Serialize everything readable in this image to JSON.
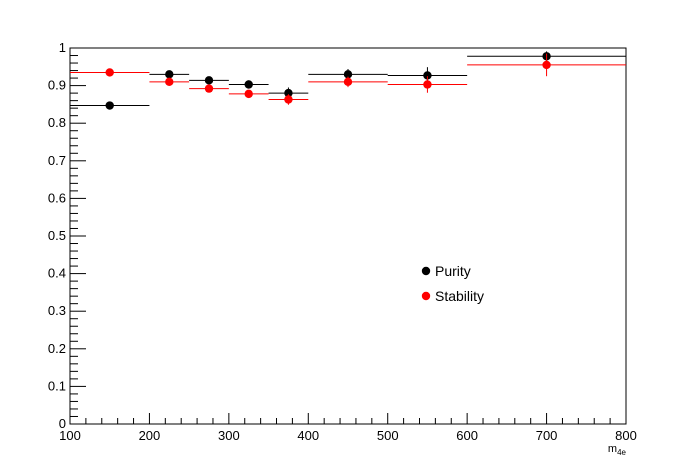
{
  "chart_data": {
    "type": "scatter",
    "title": "",
    "xlabel": "m_{4e}",
    "xlabel_main": "m",
    "xlabel_sub": "4e",
    "ylabel": "",
    "xlim": [
      100,
      800
    ],
    "ylim": [
      0,
      1
    ],
    "xticks": [
      100,
      200,
      300,
      400,
      500,
      600,
      700,
      800
    ],
    "xtick_labels": [
      "100",
      "200",
      "300",
      "400",
      "500",
      "600",
      "700",
      "800"
    ],
    "yticks": [
      0,
      0.1,
      0.2,
      0.3,
      0.4,
      0.5,
      0.6,
      0.7,
      0.8,
      0.9,
      1
    ],
    "ytick_labels": [
      "0",
      "0.1",
      "0.2",
      "0.3",
      "0.4",
      "0.5",
      "0.6",
      "0.7",
      "0.8",
      "0.9",
      "1"
    ],
    "grid": false,
    "legend_position": "center-right",
    "series": [
      {
        "name": "Purity",
        "color": "#000000",
        "points": [
          {
            "x": 150,
            "xlow": 100,
            "xhigh": 200,
            "y": 0.847,
            "yerr": 0.006
          },
          {
            "x": 225,
            "xlow": 200,
            "xhigh": 250,
            "y": 0.93,
            "yerr": 0.008
          },
          {
            "x": 275,
            "xlow": 250,
            "xhigh": 300,
            "y": 0.914,
            "yerr": 0.009
          },
          {
            "x": 325,
            "xlow": 300,
            "xhigh": 350,
            "y": 0.903,
            "yerr": 0.011
          },
          {
            "x": 375,
            "xlow": 350,
            "xhigh": 400,
            "y": 0.88,
            "yerr": 0.015
          },
          {
            "x": 450,
            "xlow": 400,
            "xhigh": 500,
            "y": 0.93,
            "yerr": 0.014
          },
          {
            "x": 550,
            "xlow": 500,
            "xhigh": 600,
            "y": 0.927,
            "yerr": 0.022
          },
          {
            "x": 700,
            "xlow": 600,
            "xhigh": 800,
            "y": 0.978,
            "yerr": 0.013
          }
        ]
      },
      {
        "name": "Stability",
        "color": "#ff0000",
        "points": [
          {
            "x": 150,
            "xlow": 100,
            "xhigh": 200,
            "y": 0.935,
            "yerr": 0.005
          },
          {
            "x": 225,
            "xlow": 200,
            "xhigh": 250,
            "y": 0.91,
            "yerr": 0.008
          },
          {
            "x": 275,
            "xlow": 250,
            "xhigh": 300,
            "y": 0.892,
            "yerr": 0.009
          },
          {
            "x": 325,
            "xlow": 300,
            "xhigh": 350,
            "y": 0.878,
            "yerr": 0.01
          },
          {
            "x": 375,
            "xlow": 350,
            "xhigh": 400,
            "y": 0.863,
            "yerr": 0.014
          },
          {
            "x": 450,
            "xlow": 400,
            "xhigh": 500,
            "y": 0.91,
            "yerr": 0.014
          },
          {
            "x": 550,
            "xlow": 500,
            "xhigh": 600,
            "y": 0.903,
            "yerr": 0.022
          },
          {
            "x": 700,
            "xlow": 600,
            "xhigh": 800,
            "y": 0.955,
            "yerr": 0.03
          }
        ]
      }
    ]
  }
}
